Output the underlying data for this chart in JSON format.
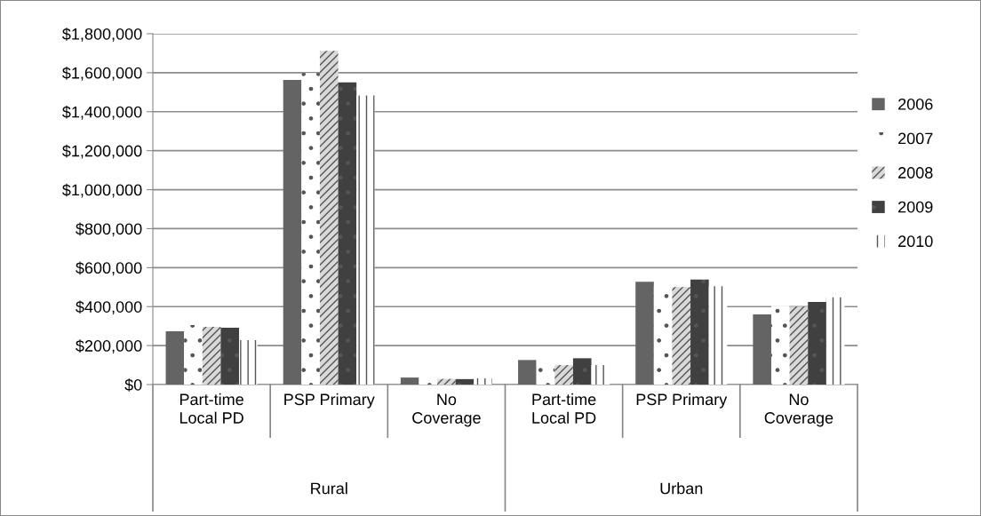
{
  "chart_data": {
    "type": "bar",
    "categories": [
      "Part-time\nLocal PD",
      "PSP Primary",
      "No\nCoverage",
      "Part-time\nLocal PD",
      "PSP Primary",
      "No\nCoverage"
    ],
    "series": [
      {
        "name": "2006",
        "color": "#646464",
        "values": [
          273000,
          1563000,
          36000,
          126000,
          527000,
          360000
        ]
      },
      {
        "name": "2007",
        "color": "#ffffff",
        "values": [
          305000,
          1598000,
          64000,
          135000,
          505000,
          404000
        ]
      },
      {
        "name": "2008",
        "color": "#d9d9d9",
        "values": [
          296000,
          1712000,
          29000,
          100000,
          500000,
          400000
        ]
      },
      {
        "name": "2009",
        "color": "#404040",
        "values": [
          292000,
          1551000,
          28000,
          135000,
          539000,
          424000
        ]
      },
      {
        "name": "2010",
        "color": "#ffffff",
        "values": [
          228000,
          1483000,
          32000,
          100000,
          505000,
          448000
        ]
      }
    ],
    "annotations": [
      "Rural",
      "Urban"
    ],
    "ylim": [
      0,
      1800000
    ],
    "yticks": [
      {
        "value": 0,
        "label": "$0"
      },
      {
        "value": 200000,
        "label": "$200,000"
      },
      {
        "value": 400000,
        "label": "$400,000"
      },
      {
        "value": 600000,
        "label": "$600,000"
      },
      {
        "value": 800000,
        "label": "$800,000"
      },
      {
        "value": 1000000,
        "label": "$1,000,000"
      },
      {
        "value": 1200000,
        "label": "$1,200,000"
      },
      {
        "value": 1400000,
        "label": "$1,400,000"
      },
      {
        "value": 1600000,
        "label": "$1,600,000"
      },
      {
        "value": 1800000,
        "label": "$1,800,000"
      }
    ],
    "grid": "y",
    "legend": "right"
  }
}
